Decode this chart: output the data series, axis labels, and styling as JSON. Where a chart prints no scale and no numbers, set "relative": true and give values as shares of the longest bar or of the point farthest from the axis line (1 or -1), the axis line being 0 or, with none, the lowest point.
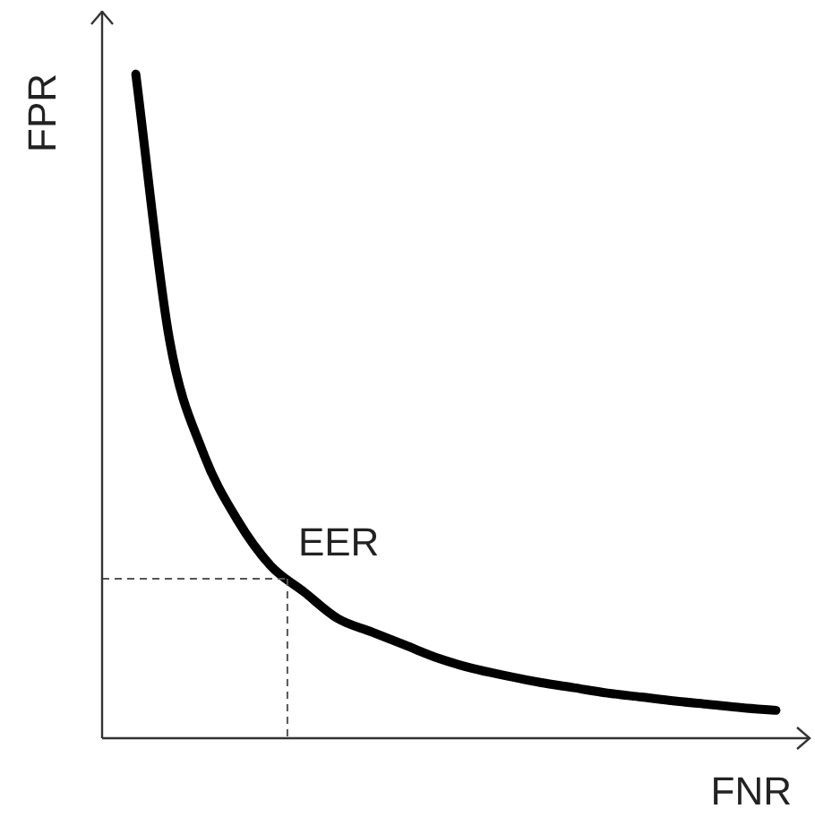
{
  "chart_data": {
    "type": "line",
    "relative": true,
    "xlabel": "FNR",
    "ylabel": "FPR",
    "tick_labels": false,
    "grid": false,
    "legend": false,
    "marker": "none",
    "line_style": "solid",
    "categories": [
      null,
      null,
      null,
      null,
      null,
      null,
      null,
      null,
      null,
      null,
      null,
      null,
      null,
      null,
      null,
      null,
      null,
      null,
      null,
      null,
      null,
      null
    ],
    "series": [
      {
        "color": "#000000",
        "values": [
          null,
          1,
          0.6,
          0.43,
          0.33,
          0.26,
          0.22,
          0.18,
          0.16,
          0.14,
          0.12,
          0.105,
          0.094,
          0.084,
          0.076,
          0.068,
          0.062,
          0.056,
          0.051,
          0.046,
          0.042,
          null
        ]
      }
    ],
    "ref_lines": [
      {
        "axis": "y",
        "value": 0.24,
        "label": "EER",
        "line_style": "dashed",
        "color": "#555555"
      }
    ]
  }
}
